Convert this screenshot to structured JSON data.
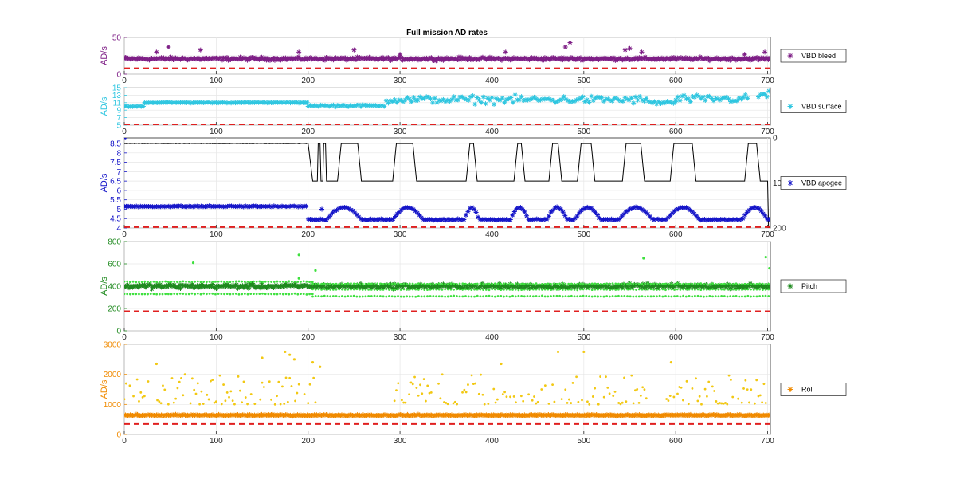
{
  "figure_title": "Full mission AD rates",
  "chart_data": [
    {
      "type": "scatter",
      "name": "bleed",
      "ylabel": "AD/s",
      "xlim": [
        0,
        703
      ],
      "ylim": [
        0,
        50
      ],
      "xticks": [
        0,
        100,
        200,
        300,
        400,
        500,
        600,
        700
      ],
      "yticks": [
        0,
        25,
        50
      ],
      "ytick_labels": [
        "0",
        "",
        "50"
      ],
      "color": "#7E1F86",
      "grid": true,
      "legend": {
        "label": "VBD bleed",
        "position": "right",
        "marker": "*",
        "color": "#7E1F86"
      },
      "threshold": {
        "value": 8,
        "color": "#E02020",
        "style": "dashed"
      },
      "series": [
        {
          "marker": "*",
          "color": "#7E1F86",
          "baseline": 21,
          "jitter": 3,
          "outliers": [
            [
              35,
              30
            ],
            [
              48,
              37
            ],
            [
              83,
              33
            ],
            [
              190,
              30
            ],
            [
              250,
              33
            ],
            [
              300,
              27
            ],
            [
              415,
              30
            ],
            [
              480,
              37
            ],
            [
              485,
              43
            ],
            [
              545,
              33
            ],
            [
              550,
              35
            ],
            [
              563,
              30
            ],
            [
              675,
              27
            ],
            [
              697,
              30
            ]
          ]
        }
      ]
    },
    {
      "type": "scatter",
      "name": "surface",
      "ylabel": "AD/s",
      "xlim": [
        0,
        703
      ],
      "ylim": [
        5,
        15
      ],
      "xticks": [
        0,
        100,
        200,
        300,
        400,
        500,
        600,
        700
      ],
      "yticks": [
        5,
        7,
        9,
        11,
        13,
        15
      ],
      "ytick_labels": [
        "5",
        "7",
        "9",
        "11",
        "13",
        "15"
      ],
      "color": "#2FC6E0",
      "grid": true,
      "legend": {
        "label": "VBD surface",
        "position": "right",
        "marker": "*",
        "color": "#2FC6E0"
      },
      "threshold": {
        "value": 5.1,
        "color": "#E02020",
        "style": "dashed"
      },
      "series": [
        {
          "marker": "*",
          "color": "#2FC6E0",
          "segments": [
            [
              0,
              22,
              10.0,
              0.2
            ],
            [
              22,
              200,
              11.0,
              0.15
            ],
            [
              200,
              285,
              10.2,
              0.4
            ],
            [
              285,
              570,
              11.8,
              1.5
            ],
            [
              570,
              600,
              11.0,
              0.8
            ],
            [
              600,
              680,
              12.0,
              1.5
            ],
            [
              690,
              703,
              13.0,
              2.0
            ]
          ]
        }
      ]
    },
    {
      "type": "line",
      "name": "apogee",
      "ylabel": "AD/s",
      "xlim": [
        0,
        703
      ],
      "ylim": [
        4,
        8.8
      ],
      "xticks": [
        0,
        100,
        200,
        300,
        400,
        500,
        600,
        700
      ],
      "yticks": [
        4,
        4.5,
        5,
        5.5,
        6,
        6.5,
        7,
        7.5,
        8,
        8.5
      ],
      "ytick_labels": [
        "4",
        "4.5",
        "5",
        "5.5",
        "6",
        "6.5",
        "7",
        "7.5",
        "8",
        "8.5"
      ],
      "right_ticks": [
        "0",
        "100",
        "200"
      ],
      "right_range": [
        0,
        200
      ],
      "right_tick_values": [
        0,
        100,
        200
      ],
      "color": "#1414C8",
      "grid": true,
      "legend": {
        "label": "VBD apogee",
        "position": "right",
        "marker": "*",
        "color": "#1414C8"
      },
      "threshold": {
        "value": 4.05,
        "color": "#E02020",
        "style": "dashed"
      },
      "series": [
        {
          "kind": "line",
          "color": "#000000",
          "high": 8.5,
          "low": 6.5,
          "high_until": 200,
          "humps": [
            [
              232,
              258
            ],
            [
              292,
              318
            ],
            [
              372,
              384
            ],
            [
              424,
              436
            ],
            [
              462,
              476
            ],
            [
              493,
              512
            ],
            [
              542,
              566
            ],
            [
              594,
              622
            ],
            [
              675,
              692
            ]
          ],
          "spikes": [
            [
              212,
              8.5
            ],
            [
              218,
              8.5
            ]
          ]
        },
        {
          "kind": "markers",
          "marker": "*",
          "color": "#1414C8",
          "high": 5.15,
          "low": 4.45,
          "high_until": 200,
          "humps": [
            [
              220,
              258
            ],
            [
              292,
              325
            ],
            [
              370,
              386
            ],
            [
              420,
              440
            ],
            [
              460,
              482
            ],
            [
              490,
              518
            ],
            [
              538,
              575
            ],
            [
              590,
              626
            ],
            [
              672,
              700
            ]
          ],
          "hump_peak": 5.1
        }
      ]
    },
    {
      "type": "scatter",
      "name": "pitch",
      "ylabel": "AD/s",
      "xlim": [
        0,
        703
      ],
      "ylim": [
        0,
        800
      ],
      "xticks": [
        0,
        100,
        200,
        300,
        400,
        500,
        600,
        700
      ],
      "yticks": [
        0,
        200,
        400,
        600,
        800
      ],
      "ytick_labels": [
        "0",
        "200",
        "400",
        "600",
        "800"
      ],
      "color": "#1F8A1F",
      "grid": true,
      "legend": {
        "label": "Pitch",
        "position": "right",
        "marker": "*",
        "color": "#1F8A1F"
      },
      "threshold": {
        "value": 175,
        "color": "#E02020",
        "style": "dashed"
      },
      "series": [
        {
          "marker": "*",
          "color": "#1F8A1F",
          "baseline": 400,
          "jitter": 30
        },
        {
          "marker": "dot",
          "color": "#3EE03E",
          "bands": [
            [
              0,
              205,
              330
            ],
            [
              0,
              205,
              440
            ],
            [
              205,
              703,
              310
            ],
            [
              205,
              703,
              370
            ],
            [
              205,
              703,
              420
            ]
          ],
          "outliers": [
            [
              75,
              610
            ],
            [
              190,
              680
            ],
            [
              208,
              540
            ],
            [
              565,
              650
            ],
            [
              698,
              660
            ],
            [
              702,
              560
            ],
            [
              190,
              470
            ]
          ]
        }
      ]
    },
    {
      "type": "scatter",
      "name": "roll",
      "ylabel": "AD/s",
      "xlim": [
        0,
        703
      ],
      "ylim": [
        0,
        3000
      ],
      "xticks": [
        0,
        100,
        200,
        300,
        400,
        500,
        600,
        700
      ],
      "yticks": [
        0,
        1000,
        2000,
        3000
      ],
      "ytick_labels": [
        "0",
        "1000",
        "2000",
        "3000"
      ],
      "color": "#F08A00",
      "grid": true,
      "legend": {
        "label": "Roll",
        "position": "right",
        "marker": "*",
        "color": "#F08A00"
      },
      "threshold": {
        "value": 350,
        "color": "#E02020",
        "style": "dashed"
      },
      "series": [
        {
          "marker": "*",
          "color": "#F08A00",
          "baseline": 640,
          "jitter": 40
        },
        {
          "marker": "dot",
          "color": "#F2C812",
          "spread_low": 1000,
          "spread_high": 2000,
          "sparse_ranges": [
            [
              0,
              210
            ],
            [
              290,
              570
            ],
            [
              590,
              700
            ]
          ],
          "outliers": [
            [
              35,
              2350
            ],
            [
              150,
              2550
            ],
            [
              175,
              2750
            ],
            [
              180,
              2650
            ],
            [
              185,
              2500
            ],
            [
              205,
              2400
            ],
            [
              213,
              2250
            ],
            [
              410,
              2350
            ],
            [
              472,
              2750
            ],
            [
              500,
              2750
            ],
            [
              595,
              2400
            ]
          ]
        }
      ]
    }
  ]
}
